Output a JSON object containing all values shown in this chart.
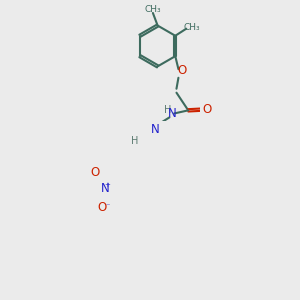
{
  "bg_color": "#ebebeb",
  "bond_color": "#3d6b5e",
  "atom_colors": {
    "O": "#cc2200",
    "N": "#2222cc",
    "C": "#3d6b5e",
    "H": "#5a7a70"
  },
  "figsize": [
    3.0,
    3.0
  ],
  "dpi": 100
}
